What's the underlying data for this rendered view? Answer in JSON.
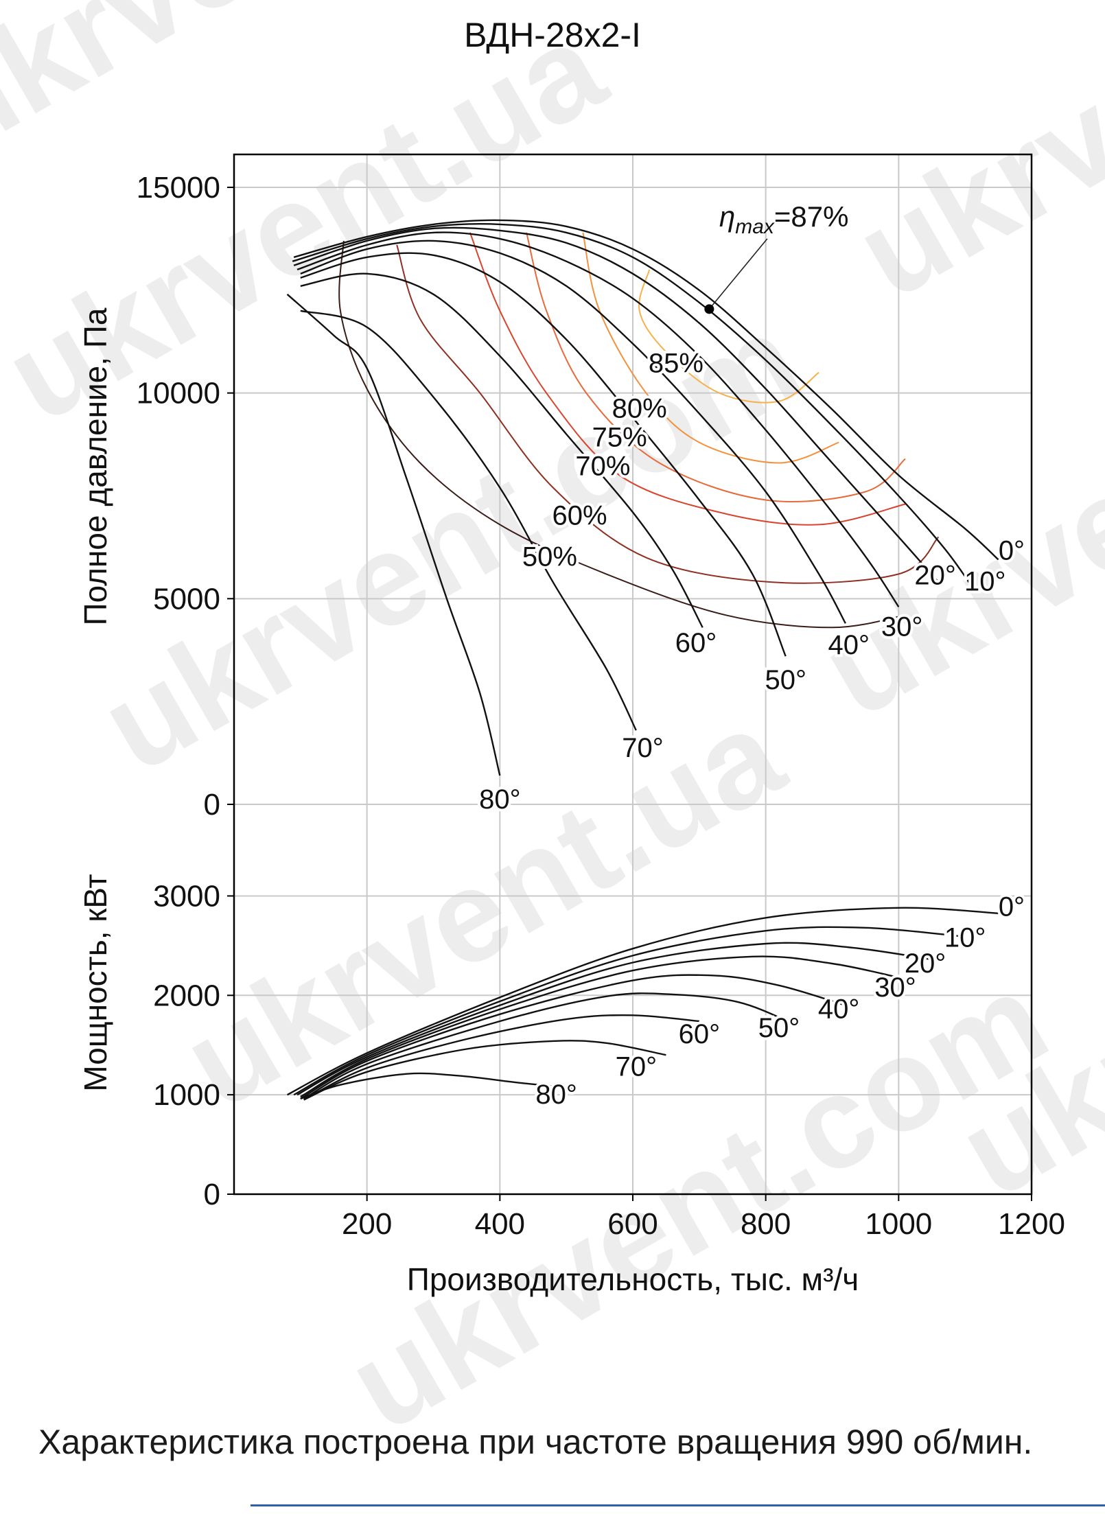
{
  "chart_data": {
    "type": "line",
    "title": "ВДН-28х2-I",
    "xlabel": "Производительность, тыс. м³/ч",
    "xlim": [
      0,
      1200
    ],
    "x_ticks": [
      "200",
      "400",
      "600",
      "800",
      "1000",
      "1200"
    ],
    "grid": true,
    "watermark": "ukrvent.com ukrvent.ua",
    "pressure_panel": {
      "ylabel": "Полное давление, Па",
      "ylim": [
        0,
        15800
      ],
      "y_ticks": [
        "0",
        "5000",
        "10000",
        "15000"
      ],
      "blade_angle_curves": [
        {
          "name": "0°",
          "points": [
            [
              90,
              13300
            ],
            [
              200,
              13800
            ],
            [
              300,
              14100
            ],
            [
              400,
              14200
            ],
            [
              500,
              14050
            ],
            [
              600,
              13500
            ],
            [
              700,
              12500
            ],
            [
              800,
              11100
            ],
            [
              900,
              9600
            ],
            [
              1000,
              8000
            ],
            [
              1100,
              6700
            ],
            [
              1150,
              5950
            ]
          ]
        },
        {
          "name": "10°",
          "points": [
            [
              88,
              13200
            ],
            [
              200,
              13750
            ],
            [
              300,
              14050
            ],
            [
              400,
              14100
            ],
            [
              500,
              13900
            ],
            [
              600,
              13300
            ],
            [
              700,
              12200
            ],
            [
              800,
              10800
            ],
            [
              900,
              9200
            ],
            [
              1000,
              7500
            ],
            [
              1070,
              6200
            ],
            [
              1110,
              5300
            ]
          ]
        },
        {
          "name": "20°",
          "points": [
            [
              90,
              13100
            ],
            [
              200,
              13700
            ],
            [
              300,
              14000
            ],
            [
              400,
              13950
            ],
            [
              500,
              13650
            ],
            [
              600,
              12900
            ],
            [
              700,
              11700
            ],
            [
              800,
              10100
            ],
            [
              900,
              8300
            ],
            [
              1000,
              6500
            ],
            [
              1060,
              5400
            ]
          ]
        },
        {
          "name": "30°",
          "points": [
            [
              95,
              13000
            ],
            [
              200,
              13600
            ],
            [
              300,
              13900
            ],
            [
              400,
              13750
            ],
            [
              500,
              13200
            ],
            [
              600,
              12300
            ],
            [
              700,
              10900
            ],
            [
              800,
              9100
            ],
            [
              900,
              7100
            ],
            [
              960,
              5800
            ],
            [
              1000,
              4800
            ]
          ]
        },
        {
          "name": "40°",
          "points": [
            [
              100,
              12900
            ],
            [
              200,
              13500
            ],
            [
              300,
              13700
            ],
            [
              400,
              13400
            ],
            [
              500,
              12600
            ],
            [
              600,
              11200
            ],
            [
              700,
              9500
            ],
            [
              800,
              7600
            ],
            [
              880,
              5600
            ],
            [
              920,
              4400
            ]
          ]
        },
        {
          "name": "50°",
          "points": [
            [
              100,
              12800
            ],
            [
              200,
              13300
            ],
            [
              300,
              13350
            ],
            [
              400,
              12700
            ],
            [
              500,
              11300
            ],
            [
              600,
              9400
            ],
            [
              700,
              7400
            ],
            [
              780,
              5600
            ],
            [
              830,
              3600
            ]
          ]
        },
        {
          "name": "60°",
          "points": [
            [
              100,
              12600
            ],
            [
              200,
              12900
            ],
            [
              300,
              12400
            ],
            [
              400,
              10900
            ],
            [
              500,
              9000
            ],
            [
              600,
              7100
            ],
            [
              660,
              5700
            ],
            [
              705,
              4300
            ]
          ]
        },
        {
          "name": "70°",
          "points": [
            [
              100,
              12000
            ],
            [
              200,
              11600
            ],
            [
              300,
              9900
            ],
            [
              400,
              7700
            ],
            [
              480,
              5400
            ],
            [
              560,
              3300
            ],
            [
              605,
              1800
            ]
          ]
        },
        {
          "name": "80°",
          "points": [
            [
              80,
              12400
            ],
            [
              150,
              11400
            ],
            [
              200,
              10600
            ],
            [
              260,
              7900
            ],
            [
              320,
              5000
            ],
            [
              370,
              2700
            ],
            [
              400,
              700
            ]
          ]
        }
      ],
      "angle_label_positions": [
        {
          "label": "0°",
          "x": 1170,
          "y": 5950
        },
        {
          "label": "10°",
          "x": 1130,
          "y": 5200
        },
        {
          "label": "20°",
          "x": 1055,
          "y": 5350
        },
        {
          "label": "30°",
          "x": 1005,
          "y": 4100
        },
        {
          "label": "40°",
          "x": 925,
          "y": 3650
        },
        {
          "label": "50°",
          "x": 830,
          "y": 2800
        },
        {
          "label": "60°",
          "x": 695,
          "y": 3700
        },
        {
          "label": "70°",
          "x": 615,
          "y": 1150
        },
        {
          "label": "80°",
          "x": 400,
          "y": -100
        }
      ],
      "efficiency_contours": [
        {
          "name": "85%",
          "color": "#f6b24a",
          "points": [
            [
              625,
              13000
            ],
            [
              610,
              12000
            ],
            [
              650,
              11000
            ],
            [
              730,
              10000
            ],
            [
              820,
              9800
            ],
            [
              880,
              10500
            ]
          ],
          "label_x": 665,
          "label_y": 10500
        },
        {
          "name": "80%",
          "color": "#f3923e",
          "points": [
            [
              525,
              13900
            ],
            [
              550,
              12000
            ],
            [
              620,
              10000
            ],
            [
              700,
              8800
            ],
            [
              820,
              8300
            ],
            [
              910,
              8800
            ]
          ],
          "label_x": 610,
          "label_y": 9400
        },
        {
          "name": "75%",
          "color": "#e76a3a",
          "points": [
            [
              440,
              13900
            ],
            [
              470,
              12000
            ],
            [
              530,
              10000
            ],
            [
              640,
              8300
            ],
            [
              800,
              7400
            ],
            [
              950,
              7600
            ],
            [
              1010,
              8400
            ]
          ],
          "label_x": 580,
          "label_y": 8700
        },
        {
          "name": "70%",
          "color": "#d9442e",
          "points": [
            [
              355,
              13900
            ],
            [
              400,
              12000
            ],
            [
              470,
              10000
            ],
            [
              580,
              8000
            ],
            [
              730,
              7100
            ],
            [
              880,
              6800
            ],
            [
              1010,
              7300
            ]
          ],
          "label_x": 555,
          "label_y": 8000
        },
        {
          "name": "60%",
          "color": "#8f2f22",
          "points": [
            [
              245,
              13600
            ],
            [
              280,
              11800
            ],
            [
              370,
              10000
            ],
            [
              480,
              7700
            ],
            [
              620,
              6000
            ],
            [
              810,
              5400
            ],
            [
              1000,
              5600
            ],
            [
              1060,
              6500
            ]
          ],
          "label_x": 520,
          "label_y": 6800
        },
        {
          "name": "50%",
          "color": "#3a1c17",
          "points": [
            [
              165,
              13700
            ],
            [
              160,
              12000
            ],
            [
              200,
              10100
            ],
            [
              280,
              8300
            ],
            [
              400,
              6800
            ],
            [
              560,
              5600
            ],
            [
              740,
              4600
            ],
            [
              900,
              4300
            ],
            [
              1010,
              4600
            ]
          ],
          "label_x": 475,
          "label_y": 5800
        }
      ],
      "annotation": {
        "text": "ηmax=87%",
        "eta": "η",
        "sub": "max",
        "rest": "=87%",
        "point": [
          715,
          12040
        ],
        "label_x": 730,
        "label_y": 14050
      }
    },
    "power_panel": {
      "ylabel": "Мощность, кВт",
      "ylim": [
        0,
        3300
      ],
      "y_ticks": [
        "0",
        "1000",
        "2000",
        "3000"
      ],
      "blade_angle_curves": [
        {
          "name": "0°",
          "points": [
            [
              80,
              1000
            ],
            [
              200,
              1420
            ],
            [
              400,
              1980
            ],
            [
              600,
              2470
            ],
            [
              800,
              2780
            ],
            [
              1000,
              2880
            ],
            [
              1160,
              2820
            ]
          ]
        },
        {
          "name": "10°",
          "points": [
            [
              90,
              1000
            ],
            [
              200,
              1400
            ],
            [
              400,
              1940
            ],
            [
              600,
              2400
            ],
            [
              800,
              2650
            ],
            [
              950,
              2680
            ],
            [
              1100,
              2590
            ]
          ]
        },
        {
          "name": "20°",
          "points": [
            [
              95,
              1000
            ],
            [
              200,
              1380
            ],
            [
              400,
              1900
            ],
            [
              600,
              2330
            ],
            [
              800,
              2520
            ],
            [
              930,
              2480
            ],
            [
              1060,
              2350
            ]
          ]
        },
        {
          "name": "30°",
          "points": [
            [
              100,
              980
            ],
            [
              200,
              1360
            ],
            [
              400,
              1860
            ],
            [
              600,
              2250
            ],
            [
              780,
              2390
            ],
            [
              900,
              2320
            ],
            [
              1000,
              2180
            ]
          ]
        },
        {
          "name": "40°",
          "points": [
            [
              100,
              960
            ],
            [
              200,
              1340
            ],
            [
              400,
              1810
            ],
            [
              600,
              2150
            ],
            [
              720,
              2200
            ],
            [
              820,
              2100
            ],
            [
              920,
              1900
            ]
          ]
        },
        {
          "name": "50°",
          "points": [
            [
              105,
              960
            ],
            [
              200,
              1310
            ],
            [
              400,
              1740
            ],
            [
              560,
              1990
            ],
            [
              660,
              2010
            ],
            [
              760,
              1930
            ],
            [
              840,
              1720
            ]
          ]
        },
        {
          "name": "60°",
          "points": [
            [
              105,
              950
            ],
            [
              200,
              1270
            ],
            [
              350,
              1560
            ],
            [
              500,
              1760
            ],
            [
              600,
              1800
            ],
            [
              700,
              1740
            ]
          ]
        },
        {
          "name": "70°",
          "points": [
            [
              105,
              950
            ],
            [
              200,
              1230
            ],
            [
              350,
              1460
            ],
            [
              480,
              1540
            ],
            [
              560,
              1520
            ],
            [
              650,
              1400
            ]
          ]
        },
        {
          "name": "80°",
          "points": [
            [
              100,
              960
            ],
            [
              160,
              1100
            ],
            [
              260,
              1210
            ],
            [
              340,
              1190
            ],
            [
              430,
              1120
            ],
            [
              510,
              1070
            ]
          ]
        }
      ],
      "angle_label_positions": [
        {
          "label": "0°",
          "x": 1170,
          "y": 2800
        },
        {
          "label": "10°",
          "x": 1100,
          "y": 2490
        },
        {
          "label": "20°",
          "x": 1040,
          "y": 2230
        },
        {
          "label": "30°",
          "x": 995,
          "y": 1990
        },
        {
          "label": "40°",
          "x": 910,
          "y": 1770
        },
        {
          "label": "50°",
          "x": 820,
          "y": 1580
        },
        {
          "label": "60°",
          "x": 700,
          "y": 1520
        },
        {
          "label": "70°",
          "x": 605,
          "y": 1190
        },
        {
          "label": "80°",
          "x": 485,
          "y": 910
        }
      ]
    }
  },
  "footnote": "Характеристика построена при частоте вращения 990 об/мин."
}
